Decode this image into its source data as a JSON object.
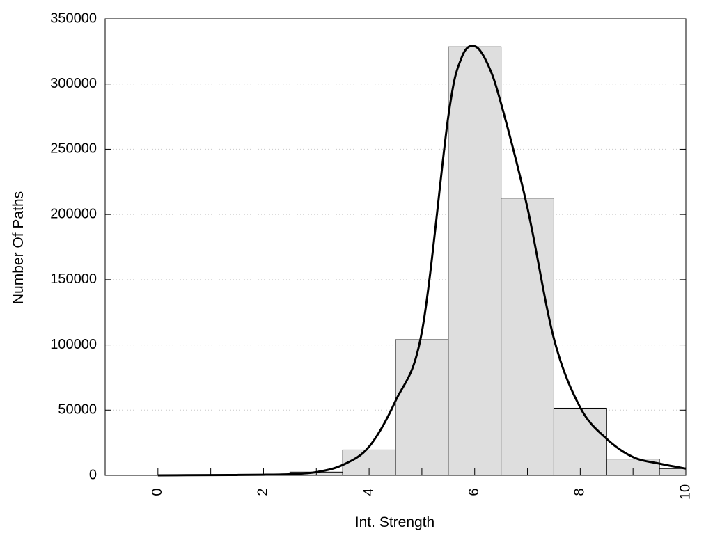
{
  "chart_data": {
    "type": "bar",
    "title": "",
    "xlabel": "Int. Strength",
    "ylabel": "Number Of Paths",
    "xlim": [
      -1,
      10
    ],
    "ylim": [
      0,
      350000
    ],
    "grid": true,
    "x_ticks": [
      0,
      2,
      4,
      6,
      8,
      10
    ],
    "x_tick_labels": [
      "0",
      "2",
      "4",
      "6",
      "8",
      "10"
    ],
    "y_ticks": [
      0,
      50000,
      100000,
      150000,
      200000,
      250000,
      300000,
      350000
    ],
    "y_tick_labels": [
      "0",
      "50000",
      "100000",
      "150000",
      "200000",
      "250000",
      "300000",
      "350000"
    ],
    "bins": [
      0,
      1,
      2,
      3,
      4,
      5,
      6,
      7,
      8,
      9,
      10
    ],
    "bin_width": 1,
    "values": [
      0,
      0,
      200,
      2500,
      19500,
      104000,
      328500,
      212500,
      51500,
      12500,
      5200
    ],
    "series": [
      {
        "type": "line",
        "x": [
          0,
          1,
          1.5,
          2,
          2.5,
          3,
          3.5,
          4,
          4.5,
          5,
          5.5,
          5.75,
          6,
          6.25,
          6.5,
          7,
          7.5,
          8,
          8.5,
          9,
          9.5,
          10
        ],
        "y": [
          0,
          200,
          300,
          500,
          900,
          2500,
          8000,
          22000,
          57000,
          110000,
          275000,
          320000,
          329000,
          315000,
          285000,
          205000,
          105000,
          52000,
          28000,
          14000,
          9000,
          5200
        ]
      }
    ]
  }
}
